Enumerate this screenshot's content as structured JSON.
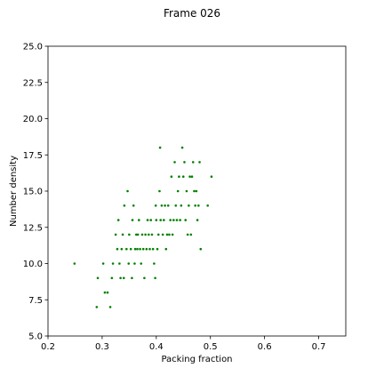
{
  "chart_data": {
    "type": "scatter",
    "title": "Frame 026",
    "xlabel": "Packing fraction",
    "ylabel": "Number density",
    "xlim": [
      0.2,
      0.75
    ],
    "ylim": [
      5.0,
      25.0
    ],
    "xticks": [
      0.2,
      0.3,
      0.4,
      0.5,
      0.6,
      0.7
    ],
    "xtick_labels": [
      "0.2",
      "0.3",
      "0.4",
      "0.5",
      "0.6",
      "0.7"
    ],
    "yticks": [
      5.0,
      7.5,
      10.0,
      12.5,
      15.0,
      17.5,
      20.0,
      22.5,
      25.0
    ],
    "ytick_labels": [
      "5.0",
      "7.5",
      "10.0",
      "12.5",
      "15.0",
      "17.5",
      "20.0",
      "22.5",
      "25.0"
    ],
    "grid": false,
    "marker_color": "#008000",
    "points": [
      [
        0.249,
        10
      ],
      [
        0.29,
        7
      ],
      [
        0.292,
        9
      ],
      [
        0.302,
        10
      ],
      [
        0.305,
        8
      ],
      [
        0.31,
        8
      ],
      [
        0.315,
        7
      ],
      [
        0.318,
        9
      ],
      [
        0.32,
        10
      ],
      [
        0.325,
        12
      ],
      [
        0.328,
        11
      ],
      [
        0.33,
        13
      ],
      [
        0.332,
        10
      ],
      [
        0.334,
        9
      ],
      [
        0.336,
        11
      ],
      [
        0.338,
        12
      ],
      [
        0.34,
        9
      ],
      [
        0.341,
        14
      ],
      [
        0.345,
        11
      ],
      [
        0.347,
        15
      ],
      [
        0.349,
        10
      ],
      [
        0.35,
        12
      ],
      [
        0.353,
        11
      ],
      [
        0.355,
        9
      ],
      [
        0.356,
        13
      ],
      [
        0.358,
        14
      ],
      [
        0.36,
        10
      ],
      [
        0.361,
        11
      ],
      [
        0.363,
        12
      ],
      [
        0.365,
        11
      ],
      [
        0.366,
        12
      ],
      [
        0.368,
        13
      ],
      [
        0.37,
        11
      ],
      [
        0.372,
        10
      ],
      [
        0.374,
        12
      ],
      [
        0.376,
        11
      ],
      [
        0.378,
        9
      ],
      [
        0.38,
        12
      ],
      [
        0.382,
        11
      ],
      [
        0.384,
        13
      ],
      [
        0.386,
        12
      ],
      [
        0.388,
        11
      ],
      [
        0.39,
        13
      ],
      [
        0.392,
        12
      ],
      [
        0.394,
        11
      ],
      [
        0.396,
        10
      ],
      [
        0.398,
        9
      ],
      [
        0.399,
        14
      ],
      [
        0.4,
        13
      ],
      [
        0.402,
        11
      ],
      [
        0.404,
        12
      ],
      [
        0.406,
        15
      ],
      [
        0.407,
        18
      ],
      [
        0.408,
        13
      ],
      [
        0.41,
        14
      ],
      [
        0.412,
        12
      ],
      [
        0.414,
        13
      ],
      [
        0.416,
        14
      ],
      [
        0.418,
        11
      ],
      [
        0.42,
        12
      ],
      [
        0.422,
        14
      ],
      [
        0.424,
        12
      ],
      [
        0.426,
        13
      ],
      [
        0.428,
        16
      ],
      [
        0.43,
        12
      ],
      [
        0.432,
        13
      ],
      [
        0.434,
        17
      ],
      [
        0.436,
        14
      ],
      [
        0.438,
        13
      ],
      [
        0.44,
        15
      ],
      [
        0.442,
        16
      ],
      [
        0.444,
        13
      ],
      [
        0.446,
        14
      ],
      [
        0.448,
        18
      ],
      [
        0.45,
        16
      ],
      [
        0.452,
        17
      ],
      [
        0.454,
        13
      ],
      [
        0.456,
        15
      ],
      [
        0.458,
        12
      ],
      [
        0.46,
        14
      ],
      [
        0.462,
        16
      ],
      [
        0.464,
        12
      ],
      [
        0.466,
        16
      ],
      [
        0.468,
        17
      ],
      [
        0.47,
        15
      ],
      [
        0.472,
        14
      ],
      [
        0.474,
        15
      ],
      [
        0.476,
        13
      ],
      [
        0.478,
        14
      ],
      [
        0.48,
        17
      ],
      [
        0.482,
        11
      ],
      [
        0.495,
        14
      ],
      [
        0.502,
        16
      ]
    ]
  }
}
